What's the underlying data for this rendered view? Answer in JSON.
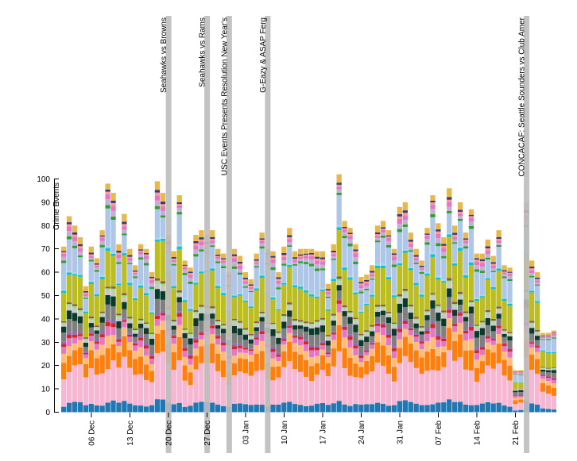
{
  "chart_data": {
    "type": "stacked-bar",
    "ylabel": "Crime Events",
    "ylim": [
      0,
      100
    ],
    "yticks": [
      0,
      10,
      20,
      30,
      40,
      50,
      60,
      70,
      80,
      90,
      100
    ],
    "xticks": [
      "06 Dec",
      "13 Dec",
      "20 Dec",
      "27 Dec",
      "03 Jan",
      "10 Jan",
      "17 Jan",
      "24 Jan",
      "31 Jan",
      "07 Feb",
      "14 Feb",
      "21 Feb"
    ],
    "start_date": "2015-12-01",
    "days": 90,
    "daily_totals": [
      71,
      84,
      80,
      75,
      54,
      71,
      66,
      78,
      98,
      94,
      72,
      85,
      70,
      63,
      72,
      70,
      60,
      99,
      94,
      76,
      69,
      93,
      65,
      62,
      76,
      78,
      76,
      78,
      70,
      68,
      60,
      70,
      67,
      60,
      57,
      68,
      77,
      70,
      69,
      60,
      71,
      79,
      69,
      70,
      70,
      70,
      69,
      69,
      55,
      72,
      102,
      82,
      79,
      72,
      58,
      59,
      63,
      80,
      82,
      78,
      70,
      88,
      90,
      77,
      70,
      65,
      79,
      93,
      81,
      75,
      96,
      80,
      90,
      77,
      87,
      68,
      68,
      74,
      67,
      78,
      63,
      62,
      18,
      18,
      90,
      65,
      60,
      34,
      34,
      35
    ],
    "category_colors": [
      "#1f77b4",
      "#aec7e8",
      "#ff7f0e",
      "#ffbb78",
      "#2ca02c",
      "#98df8a",
      "#d62728",
      "#ff9896",
      "#9467bd",
      "#c5b0d5",
      "#8c564b",
      "#c49c94",
      "#e377c2",
      "#f7b6d2",
      "#7f7f7f",
      "#c7c7c7",
      "#bcbd22",
      "#dbdb8d",
      "#17becf",
      "#9edae5",
      "#0b3a2a",
      "#e6b84d",
      "#393b79"
    ],
    "events": [
      {
        "label": "Seahawks vs Browns",
        "date": "2015-12-20"
      },
      {
        "label": "Seahawks vs Rams",
        "date": "2015-12-27"
      },
      {
        "label": "USC Events Presents Resolution New Year's",
        "date": "2015-12-31"
      },
      {
        "label": "G-Eazy & ASAP Ferg",
        "date": "2016-01-07"
      },
      {
        "label": "CONCACAF: Seattle Sounders vs Club Amer",
        "date": "2016-02-23"
      }
    ]
  }
}
